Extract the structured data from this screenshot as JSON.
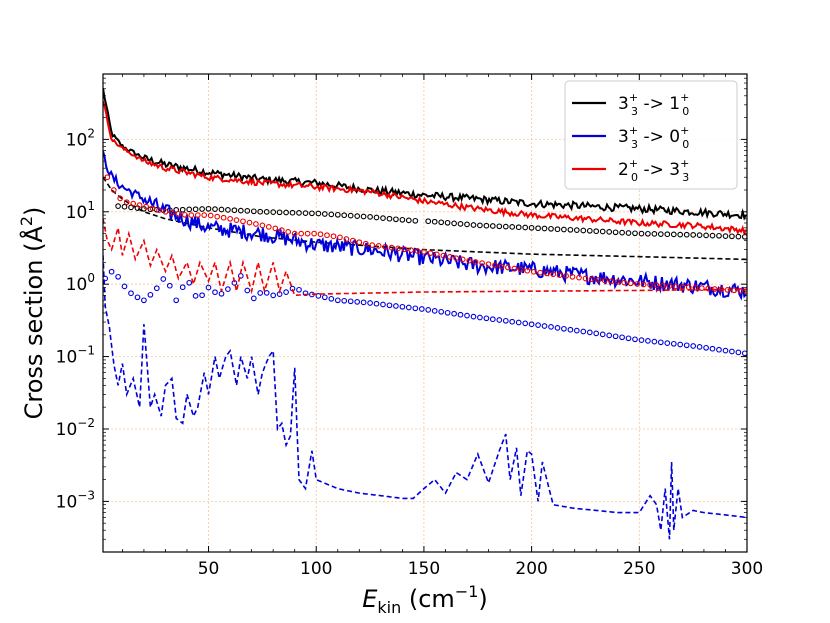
{
  "chart_data": {
    "type": "line",
    "title": "",
    "xlabel": {
      "base": "E",
      "sub": "kin",
      "unit_open": " (cm",
      "unit_exp": "−1",
      "unit_close": ")"
    },
    "ylabel": {
      "text": "Cross section (Å",
      "exp": "2",
      "close": ")"
    },
    "xlim": [
      1,
      300
    ],
    "ylim": [
      0.0002,
      800
    ],
    "yscale": "log",
    "grid": true,
    "x_ticks": [
      {
        "value": 50,
        "label": "50"
      },
      {
        "value": 100,
        "label": "100"
      },
      {
        "value": 150,
        "label": "150"
      },
      {
        "value": 200,
        "label": "200"
      },
      {
        "value": 250,
        "label": "250"
      },
      {
        "value": 300,
        "label": "300"
      }
    ],
    "y_ticks": [
      {
        "value": 100,
        "base": "10",
        "exp": "2"
      },
      {
        "value": 10,
        "base": "10",
        "exp": "1"
      },
      {
        "value": 1,
        "base": "10",
        "exp": "0"
      },
      {
        "value": 0.1,
        "base": "10",
        "exp": "−1"
      },
      {
        "value": 0.01,
        "base": "10",
        "exp": "−2"
      },
      {
        "value": 0.001,
        "base": "10",
        "exp": "−3"
      }
    ],
    "legend": {
      "placement": "top-right",
      "entries": [
        {
          "color": "#000000",
          "a": "3",
          "a_sup": "+",
          "a_sub": "3",
          "arrow": " -> ",
          "b": "1",
          "b_sup": "+",
          "b_sub": "0"
        },
        {
          "color": "#0000dd",
          "a": "3",
          "a_sup": "+",
          "a_sub": "3",
          "arrow": " -> ",
          "b": "0",
          "b_sup": "+",
          "b_sub": "0"
        },
        {
          "color": "#ee0000",
          "a": "2",
          "a_sup": "+",
          "a_sub": "0",
          "arrow": " -> ",
          "b": "3",
          "b_sup": "+",
          "b_sub": "3"
        }
      ]
    },
    "series": [
      {
        "name": "3_3 -> 1_0 solid",
        "color": "#000000",
        "style": "solid",
        "x": [
          1,
          5,
          10,
          20,
          30,
          50,
          75,
          100,
          125,
          150,
          175,
          200,
          225,
          250,
          275,
          300
        ],
        "y": [
          500,
          120,
          80,
          55,
          45,
          35,
          28,
          25,
          20,
          17,
          15,
          13,
          12,
          11,
          10,
          9
        ],
        "noise": 0.1
      },
      {
        "name": "3_3 -> 1_0 dashed",
        "color": "#000000",
        "style": "dashed",
        "x": [
          1,
          5,
          10,
          15,
          20,
          30,
          50,
          75,
          100,
          150,
          200,
          250,
          300
        ],
        "y": [
          30,
          20,
          15,
          12,
          10,
          8,
          6,
          4.5,
          3.8,
          3.0,
          2.6,
          2.4,
          2.2
        ]
      },
      {
        "name": "3_3 -> 1_0 circles",
        "color": "#000000",
        "style": "circles",
        "x": [
          8,
          20,
          30,
          50,
          75,
          100,
          125,
          145,
          150,
          175,
          200,
          225,
          250,
          275,
          300
        ],
        "y": [
          12,
          11,
          10.5,
          11,
          10,
          9.5,
          8.5,
          7.5,
          7.5,
          6.5,
          6,
          5.5,
          5.0,
          4.8,
          4.5
        ],
        "gaps": [
          [
            146,
            150
          ]
        ]
      },
      {
        "name": "3_3 -> 0_0 solid",
        "color": "#0000dd",
        "style": "solid",
        "x": [
          1,
          5,
          10,
          20,
          30,
          50,
          75,
          100,
          125,
          150,
          175,
          200,
          225,
          250,
          275,
          300
        ],
        "y": [
          60,
          30,
          22,
          15,
          10,
          6,
          5,
          3.5,
          3,
          2.3,
          1.8,
          1.6,
          1.3,
          1.1,
          0.95,
          0.8
        ],
        "noise": 0.22
      },
      {
        "name": "3_3 -> 0_0 dashed",
        "color": "#0000dd",
        "style": "dashed",
        "x": [
          1,
          2,
          4,
          6,
          8,
          10,
          12,
          15,
          18,
          20,
          23,
          25,
          28,
          30,
          33,
          35,
          38,
          40,
          43,
          45,
          48,
          50,
          53,
          55,
          58,
          60,
          63,
          65,
          68,
          70,
          73,
          75,
          78,
          80,
          82,
          84,
          86,
          88,
          90,
          92,
          95,
          98,
          100,
          110,
          120,
          130,
          140,
          145,
          150,
          155,
          160,
          165,
          170,
          175,
          180,
          185,
          188,
          190,
          193,
          195,
          198,
          200,
          203,
          205,
          210,
          220,
          230,
          240,
          250,
          255,
          258,
          260,
          262,
          264,
          265,
          266,
          268,
          270,
          275,
          280,
          290,
          300
        ],
        "y": [
          2.5,
          0.5,
          0.25,
          0.08,
          0.04,
          0.08,
          0.03,
          0.05,
          0.02,
          0.28,
          0.02,
          0.03,
          0.015,
          0.04,
          0.05,
          0.014,
          0.012,
          0.03,
          0.015,
          0.02,
          0.06,
          0.03,
          0.1,
          0.05,
          0.1,
          0.12,
          0.04,
          0.1,
          0.05,
          0.1,
          0.03,
          0.06,
          0.1,
          0.12,
          0.01,
          0.012,
          0.006,
          0.008,
          0.07,
          0.002,
          0.0015,
          0.005,
          0.002,
          0.0015,
          0.0013,
          0.0012,
          0.0011,
          0.0011,
          0.0015,
          0.002,
          0.0013,
          0.0025,
          0.002,
          0.0045,
          0.0018,
          0.005,
          0.0085,
          0.002,
          0.0055,
          0.0012,
          0.005,
          0.0045,
          0.001,
          0.0035,
          0.0009,
          0.0008,
          0.00075,
          0.0007,
          0.0007,
          0.0012,
          0.0009,
          0.0004,
          0.0015,
          0.0003,
          0.0035,
          0.0004,
          0.0015,
          0.0006,
          0.00075,
          0.0007,
          0.00065,
          0.0006
        ]
      },
      {
        "name": "3_3 -> 0_0 circles",
        "color": "#0000dd",
        "style": "circles",
        "x": [
          2,
          6,
          10,
          15,
          20,
          25,
          30,
          35,
          40,
          45,
          50,
          55,
          60,
          65,
          70,
          75,
          80,
          85,
          90,
          95,
          100,
          110,
          125,
          150,
          175,
          200,
          225,
          250,
          275,
          300
        ],
        "y": [
          1.2,
          1.6,
          1.0,
          0.7,
          0.6,
          0.8,
          1.3,
          0.6,
          1.2,
          0.6,
          0.9,
          0.7,
          0.9,
          1.3,
          0.6,
          0.8,
          0.7,
          0.75,
          0.9,
          0.75,
          0.7,
          0.6,
          0.55,
          0.45,
          0.35,
          0.28,
          0.22,
          0.17,
          0.14,
          0.11
        ]
      },
      {
        "name": "2_0 -> 3_3 solid",
        "color": "#ee0000",
        "style": "solid",
        "x": [
          1,
          5,
          10,
          20,
          30,
          50,
          75,
          100,
          125,
          150,
          175,
          200,
          225,
          250,
          275,
          300
        ],
        "y": [
          350,
          100,
          75,
          50,
          40,
          30,
          25,
          22,
          19,
          14,
          11,
          9,
          8,
          7,
          6.5,
          5.5
        ],
        "noise": 0.08
      },
      {
        "name": "2_0 -> 3_3 dashed",
        "color": "#ee0000",
        "style": "dashed",
        "x": [
          1,
          3,
          5,
          8,
          10,
          13,
          16,
          20,
          23,
          26,
          30,
          33,
          36,
          40,
          43,
          46,
          50,
          53,
          56,
          60,
          63,
          66,
          70,
          73,
          76,
          80,
          83,
          86,
          90,
          95,
          100,
          150,
          200,
          250,
          300
        ],
        "y": [
          8,
          4,
          3,
          6,
          2.5,
          5,
          2.2,
          4,
          1.8,
          3,
          1.5,
          2.5,
          1.2,
          2.0,
          1.0,
          2.0,
          1.1,
          2.0,
          0.8,
          2.0,
          0.8,
          2.0,
          0.8,
          2.0,
          0.8,
          2.0,
          0.8,
          1.5,
          0.7,
          0.72,
          0.73,
          0.78,
          0.8,
          0.82,
          0.85
        ]
      },
      {
        "name": "2_0 -> 3_3 circles",
        "color": "#ee0000",
        "style": "circles",
        "x": [
          3,
          6,
          10,
          20,
          30,
          40,
          50,
          60,
          70,
          80,
          90,
          100,
          110,
          125,
          150,
          175,
          200,
          225,
          250,
          275,
          300
        ],
        "y": [
          30,
          20,
          14,
          12,
          10,
          9,
          9,
          8,
          7,
          6,
          5,
          5,
          4.5,
          3.5,
          2.8,
          2.0,
          1.5,
          1.2,
          1.0,
          0.9,
          0.8
        ]
      }
    ]
  }
}
